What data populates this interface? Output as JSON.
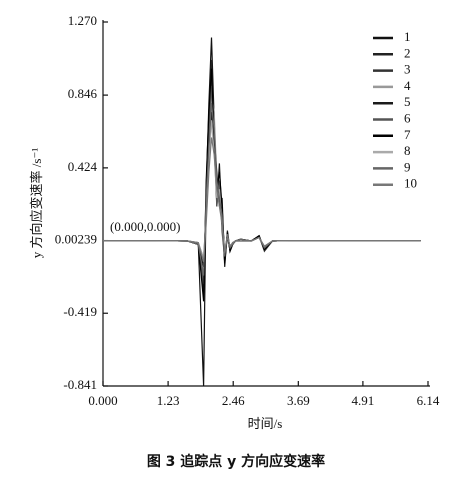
{
  "chart_data": {
    "type": "line",
    "ylabel": "y 方向应变速率 /s⁻¹",
    "xlabel": "时间/s",
    "caption": "图 3   追踪点 y 方向应变速率",
    "annotation": "(0.000,0.000)",
    "x": [
      0,
      1.0,
      1.6,
      1.8,
      1.9,
      1.95,
      2.0,
      2.05,
      2.1,
      2.15,
      2.2,
      2.25,
      2.3,
      2.35,
      2.4,
      2.45,
      2.5,
      2.6,
      2.8,
      2.95,
      3.05,
      3.2,
      3.5,
      6.0
    ],
    "xlim": [
      0,
      6.14
    ],
    "xticks": [
      {
        "value": 0,
        "label": "0.000"
      },
      1.23,
      2.46,
      3.69,
      4.91,
      6.14
    ],
    "ylim": [
      -0.841,
      1.27
    ],
    "yticks": [
      {
        "value": 1.27,
        "label": "1.270"
      },
      0.846,
      0.424,
      0.00239,
      -0.419,
      -0.841
    ],
    "series": [
      {
        "name": "1",
        "color": "#111111",
        "values": [
          0.002,
          0.002,
          0.0,
          -0.02,
          -0.84,
          0.3,
          0.8,
          1.18,
          0.7,
          0.2,
          0.45,
          0.1,
          -0.12,
          0.05,
          -0.06,
          -0.02,
          0.0,
          0.01,
          0.0,
          0.03,
          -0.05,
          0.0,
          0.002,
          0.002
        ]
      },
      {
        "name": "2",
        "color": "#222222",
        "values": [
          0.002,
          0.002,
          0.0,
          -0.01,
          -0.3,
          0.25,
          0.7,
          1.05,
          0.65,
          0.25,
          0.35,
          0.15,
          -0.08,
          0.04,
          -0.05,
          -0.01,
          0.0,
          0.01,
          0.0,
          0.02,
          -0.04,
          0.0,
          0.002,
          0.002
        ]
      },
      {
        "name": "3",
        "color": "#333333",
        "values": [
          0.002,
          0.002,
          0.0,
          -0.02,
          -0.2,
          0.2,
          0.6,
          0.95,
          0.7,
          0.3,
          0.3,
          0.2,
          -0.1,
          0.02,
          -0.04,
          -0.02,
          0.0,
          0.01,
          0.0,
          0.03,
          -0.06,
          0.0,
          0.002,
          0.002
        ]
      },
      {
        "name": "4",
        "color": "#999999",
        "values": [
          0.002,
          0.002,
          0.0,
          -0.01,
          -0.1,
          0.15,
          0.5,
          0.85,
          0.75,
          0.35,
          0.25,
          0.1,
          -0.05,
          0.03,
          -0.03,
          -0.01,
          0.0,
          0.0,
          0.0,
          0.02,
          -0.03,
          0.0,
          0.002,
          0.002
        ]
      },
      {
        "name": "5",
        "color": "#1a1a1a",
        "values": [
          0.002,
          0.002,
          0.0,
          -0.02,
          -0.15,
          0.2,
          0.45,
          0.75,
          0.6,
          0.4,
          0.2,
          0.25,
          -0.15,
          0.06,
          -0.05,
          -0.02,
          0.0,
          0.01,
          0.0,
          0.03,
          -0.05,
          0.0,
          0.002,
          0.002
        ]
      },
      {
        "name": "6",
        "color": "#555555",
        "values": [
          0.002,
          0.002,
          0.0,
          -0.01,
          -0.25,
          0.3,
          0.65,
          0.9,
          0.55,
          0.2,
          0.35,
          0.05,
          -0.1,
          0.04,
          -0.04,
          -0.01,
          0.0,
          0.01,
          0.0,
          0.02,
          -0.04,
          0.0,
          0.002,
          0.002
        ]
      },
      {
        "name": "7",
        "color": "#000000",
        "values": [
          0.002,
          0.002,
          0.0,
          -0.02,
          -0.35,
          0.35,
          0.75,
          1.0,
          0.6,
          0.3,
          0.4,
          0.2,
          -0.13,
          0.05,
          -0.06,
          -0.02,
          0.0,
          0.01,
          0.0,
          0.03,
          -0.05,
          0.0,
          0.002,
          0.002
        ]
      },
      {
        "name": "8",
        "color": "#aaaaaa",
        "values": [
          0.002,
          0.002,
          0.0,
          -0.01,
          -0.1,
          0.15,
          0.45,
          0.7,
          0.5,
          0.25,
          0.3,
          0.1,
          -0.06,
          0.03,
          -0.03,
          -0.01,
          0.0,
          0.0,
          0.0,
          0.02,
          -0.03,
          0.0,
          0.002,
          0.002
        ]
      },
      {
        "name": "9",
        "color": "#666666",
        "values": [
          0.002,
          0.002,
          0.0,
          -0.02,
          -0.2,
          0.25,
          0.55,
          0.8,
          0.65,
          0.35,
          0.25,
          0.15,
          -0.09,
          0.04,
          -0.04,
          -0.02,
          0.0,
          0.01,
          0.0,
          0.02,
          -0.04,
          0.0,
          0.002,
          0.002
        ]
      },
      {
        "name": "10",
        "color": "#777777",
        "values": [
          0.002,
          0.002,
          0.0,
          -0.01,
          -0.12,
          0.1,
          0.4,
          0.6,
          0.5,
          0.3,
          0.2,
          0.1,
          -0.07,
          0.03,
          -0.03,
          -0.01,
          0.0,
          0.0,
          0.0,
          0.02,
          -0.03,
          0.0,
          0.002,
          0.002
        ]
      }
    ]
  }
}
